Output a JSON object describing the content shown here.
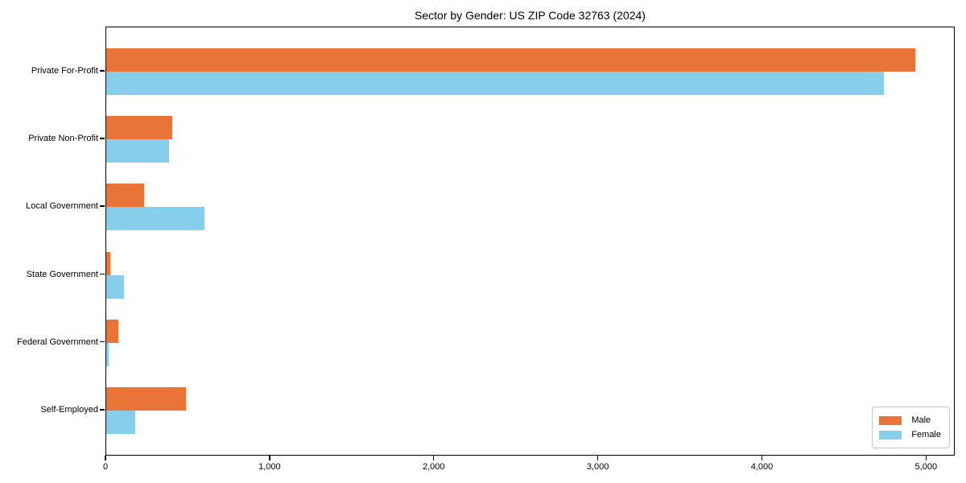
{
  "title": "Sector by Gender: US ZIP Code 32763 (2024)",
  "chart_data": {
    "type": "bar",
    "orientation": "horizontal",
    "title": "Sector by Gender: US ZIP Code 32763 (2024)",
    "categories": [
      "Private For-Profit",
      "Private Non-Profit",
      "Local Government",
      "State Government",
      "Federal Government",
      "Self-Employed"
    ],
    "series": [
      {
        "name": "Male",
        "color": "#E97438",
        "values": [
          4930,
          400,
          230,
          25,
          75,
          485
        ]
      },
      {
        "name": "Female",
        "color": "#87CEEB",
        "values": [
          4740,
          385,
          600,
          110,
          15,
          175
        ]
      }
    ],
    "xlim": [
      0,
      5175
    ],
    "xticks": [
      0,
      1000,
      2000,
      3000,
      4000,
      5000
    ],
    "xtick_labels": [
      "0",
      "1,000",
      "2,000",
      "3,000",
      "4,000",
      "5,000"
    ],
    "xlabel": "",
    "ylabel": "",
    "grid": false,
    "legend_position": "lower right",
    "legend": [
      "Male",
      "Female"
    ]
  }
}
